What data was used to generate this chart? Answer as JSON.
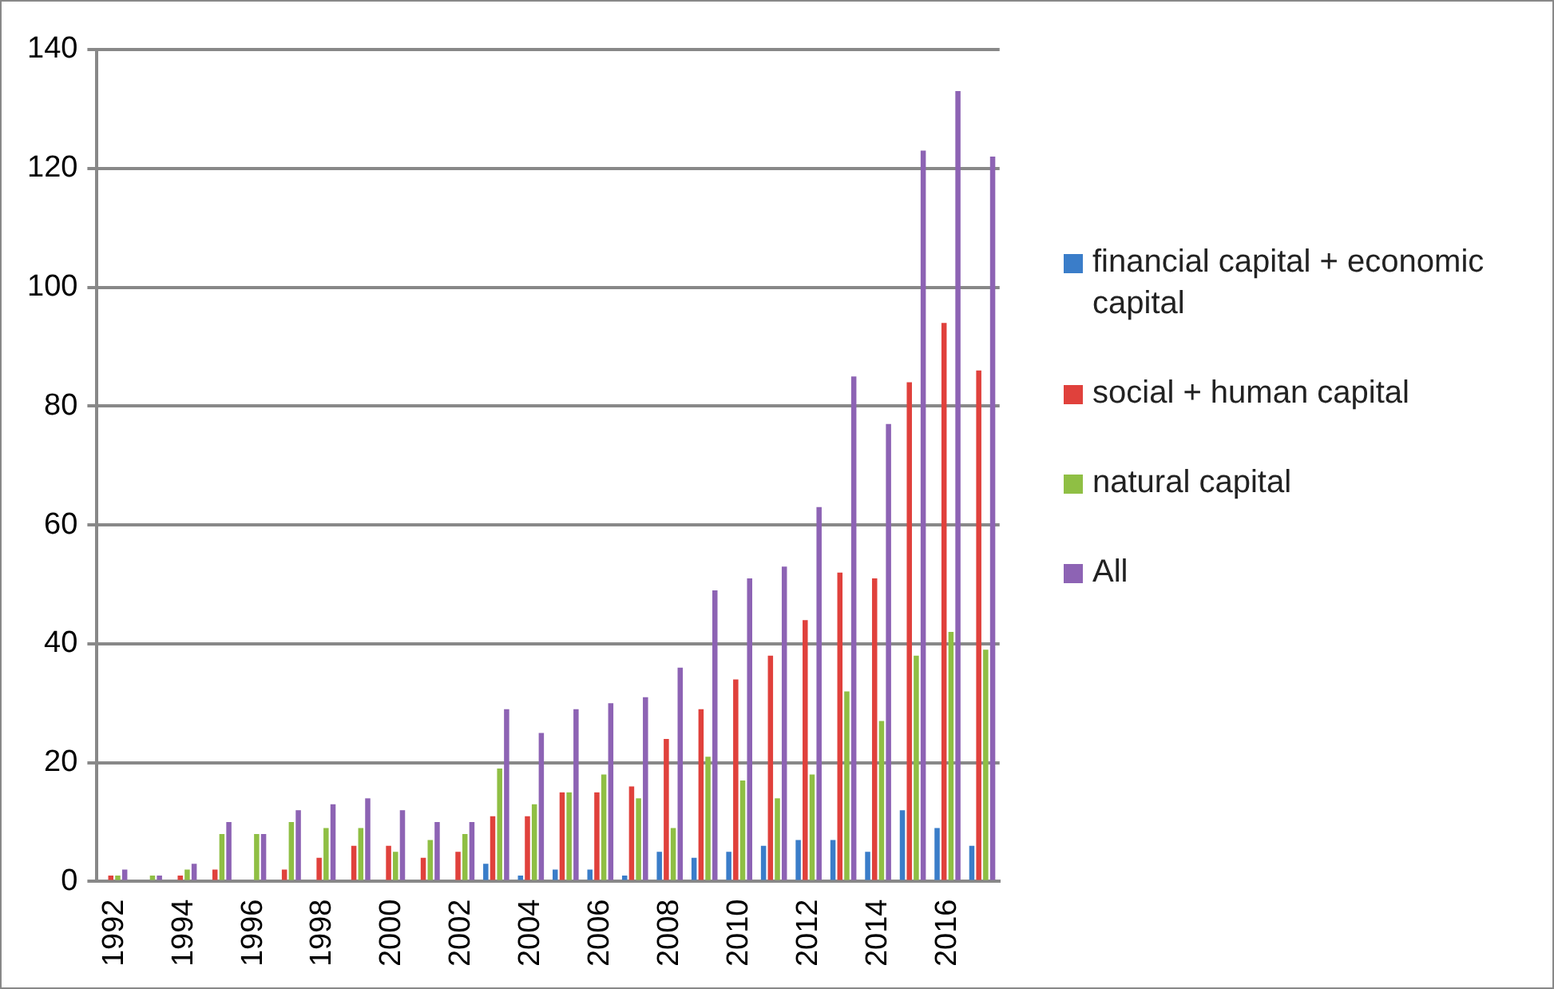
{
  "chart_data": {
    "type": "bar",
    "categories": [
      "1992",
      null,
      "1994",
      null,
      "1996",
      null,
      "1998",
      null,
      "2000",
      null,
      "2002",
      null,
      "2004",
      null,
      "2006",
      null,
      "2008",
      null,
      "2010",
      null,
      "2012",
      null,
      "2014",
      null,
      "2016",
      null
    ],
    "series": [
      {
        "name": "financial capital + economic capital",
        "color": "#3a7dc9",
        "values": [
          0,
          0,
          0,
          0,
          0,
          0,
          0,
          0,
          0,
          0,
          0,
          3,
          1,
          2,
          2,
          1,
          5,
          4,
          5,
          6,
          7,
          7,
          5,
          12,
          9,
          6
        ]
      },
      {
        "name": "social +  human capital",
        "color": "#e0413c",
        "values": [
          1,
          0,
          1,
          2,
          0,
          2,
          4,
          6,
          6,
          4,
          5,
          11,
          11,
          15,
          15,
          16,
          24,
          29,
          34,
          38,
          44,
          52,
          51,
          84,
          94,
          86
        ]
      },
      {
        "name": "natural capital",
        "color": "#8fbf44",
        "values": [
          1,
          1,
          2,
          8,
          8,
          10,
          9,
          9,
          5,
          7,
          8,
          19,
          13,
          15,
          18,
          14,
          9,
          21,
          17,
          14,
          18,
          32,
          27,
          38,
          42,
          39
        ]
      },
      {
        "name": "All",
        "color": "#8d63b4",
        "values": [
          2,
          1,
          3,
          10,
          8,
          12,
          13,
          14,
          12,
          10,
          10,
          29,
          25,
          29,
          30,
          31,
          36,
          49,
          51,
          53,
          63,
          85,
          77,
          123,
          133,
          122
        ]
      }
    ],
    "ylim": [
      0,
      140
    ],
    "yticks": [
      0,
      20,
      40,
      60,
      80,
      100,
      120,
      140
    ],
    "grid": "y",
    "legend": "right"
  }
}
